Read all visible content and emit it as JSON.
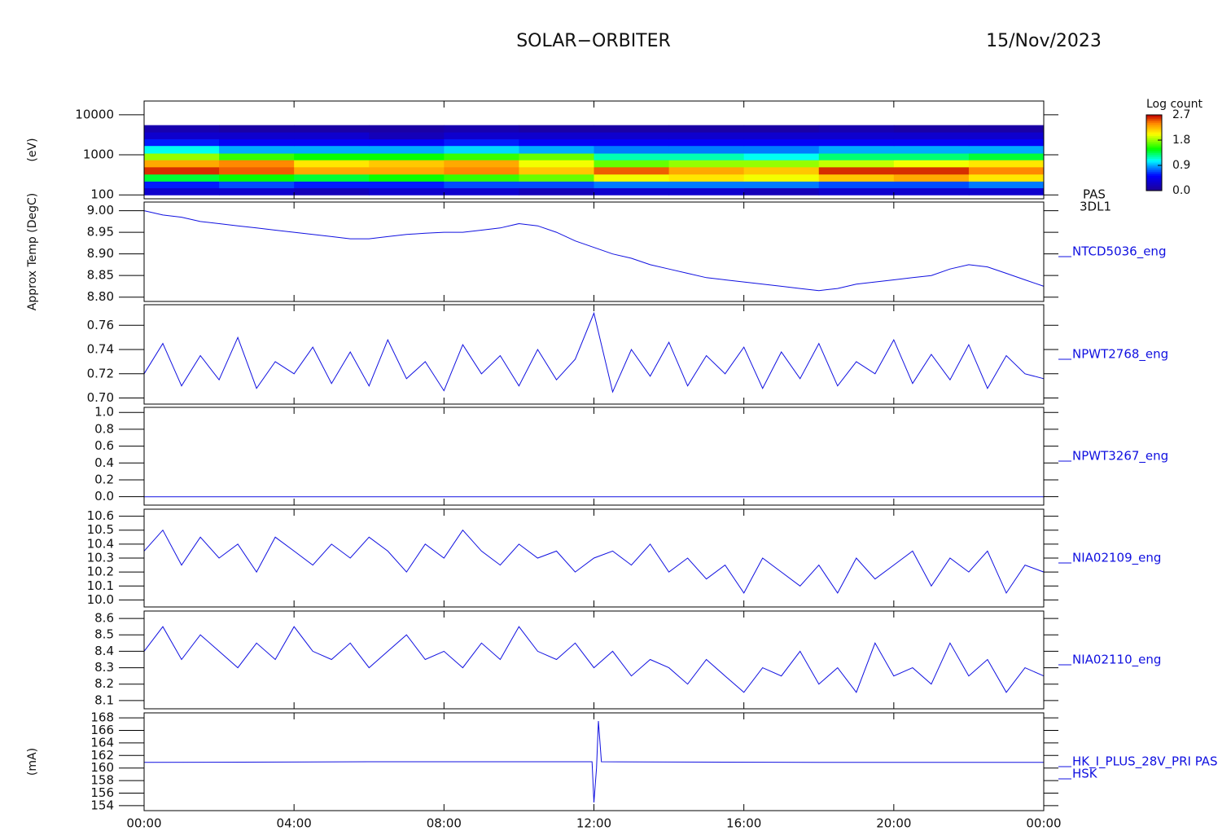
{
  "header": {
    "title": "SOLAR−ORBITER",
    "date": "15/Nov/2023"
  },
  "time_axis": {
    "xlim": [
      0,
      24
    ],
    "xticks": [
      {
        "value": 0,
        "label": "00:00"
      },
      {
        "value": 4,
        "label": "04:00"
      },
      {
        "value": 8,
        "label": "08:00"
      },
      {
        "value": 12,
        "label": "12:00"
      },
      {
        "value": 16,
        "label": "16:00"
      },
      {
        "value": 20,
        "label": "20:00"
      },
      {
        "value": 24,
        "label": "00:00"
      }
    ]
  },
  "chart_data": [
    {
      "type": "heatmap",
      "ylabel": "(eV)",
      "label": [
        "PAS",
        "3DL1"
      ],
      "ylog": true,
      "ylim": [
        80,
        22000
      ],
      "yticks": [
        100,
        1000,
        10000
      ],
      "x": [
        0,
        2,
        4,
        6,
        8,
        10,
        12,
        14,
        16,
        18,
        20,
        22,
        24
      ],
      "y": [
        100,
        150,
        220,
        330,
        500,
        750,
        1100,
        1700,
        2500,
        3700,
        5500
      ],
      "z": [
        [
          0.3,
          0.3,
          0.2,
          0.3,
          0.3,
          0.2,
          0.3,
          0.3,
          0.2,
          0.3,
          0.3,
          0.3
        ],
        [
          0.6,
          0.7,
          0.6,
          0.6,
          0.7,
          0.7,
          0.8,
          0.8,
          0.8,
          0.7,
          0.7,
          0.8
        ],
        [
          1.4,
          1.5,
          1.4,
          1.5,
          1.6,
          1.7,
          2.0,
          2.1,
          2.0,
          2.2,
          2.3,
          2.1
        ],
        [
          2.6,
          2.5,
          2.3,
          2.3,
          2.4,
          2.2,
          2.5,
          2.3,
          2.2,
          2.6,
          2.6,
          2.4
        ],
        [
          2.3,
          2.4,
          2.1,
          2.2,
          2.3,
          2.0,
          1.7,
          1.8,
          1.8,
          1.9,
          2.0,
          2.1
        ],
        [
          1.8,
          1.6,
          1.5,
          1.5,
          1.6,
          1.7,
          1.2,
          1.2,
          1.1,
          1.3,
          1.3,
          1.4
        ],
        [
          1.1,
          0.9,
          0.9,
          0.9,
          1.0,
          0.9,
          0.8,
          0.8,
          0.8,
          0.9,
          0.9,
          0.9
        ],
        [
          0.6,
          0.5,
          0.5,
          0.5,
          0.6,
          0.5,
          0.5,
          0.5,
          0.5,
          0.5,
          0.5,
          0.5
        ],
        [
          0.3,
          0.3,
          0.3,
          0.2,
          0.3,
          0.3,
          0.3,
          0.3,
          0.3,
          0.3,
          0.3,
          0.3
        ],
        [
          0.15,
          0.1,
          0.1,
          0.1,
          0.15,
          0.1,
          0.1,
          0.1,
          0.1,
          0.15,
          0.1,
          0.1
        ]
      ],
      "colormap": "rainbow",
      "colorbar_title": "Log count",
      "zlim": [
        0,
        2.7
      ],
      "zticks": [
        {
          "value": 0,
          "label": "0.0"
        },
        0.9,
        1.8,
        2.7
      ]
    },
    {
      "type": "line",
      "ylabel": "Approx Temp (DegC)",
      "label": "NTCD5036_eng",
      "color": "#1010e0",
      "ylim": [
        8.79,
        9.02
      ],
      "yticks": [
        {
          "value": 8.8,
          "label": "8.80"
        },
        8.85,
        {
          "value": 8.9,
          "label": "8.90"
        },
        8.95,
        {
          "value": 9,
          "label": "9.00"
        }
      ],
      "x": [
        0,
        0.5,
        1,
        1.5,
        2,
        2.5,
        3,
        3.5,
        4,
        4.5,
        5,
        5.5,
        6,
        6.5,
        7,
        7.5,
        8,
        8.5,
        9,
        9.5,
        10,
        10.5,
        11,
        11.5,
        12,
        12.5,
        13,
        13.5,
        14,
        14.5,
        15,
        15.5,
        16,
        16.5,
        17,
        17.5,
        18,
        18.5,
        19,
        19.5,
        20,
        20.5,
        21,
        21.5,
        22,
        22.5,
        23,
        23.5,
        24
      ],
      "values": [
        9.0,
        8.99,
        8.985,
        8.975,
        8.97,
        8.965,
        8.96,
        8.955,
        8.95,
        8.945,
        8.94,
        8.935,
        8.935,
        8.94,
        8.945,
        8.948,
        8.95,
        8.95,
        8.955,
        8.96,
        8.97,
        8.965,
        8.95,
        8.93,
        8.915,
        8.9,
        8.89,
        8.875,
        8.865,
        8.855,
        8.845,
        8.84,
        8.835,
        8.83,
        8.825,
        8.82,
        8.815,
        8.82,
        8.83,
        8.835,
        8.84,
        8.845,
        8.85,
        8.865,
        8.875,
        8.87,
        8.855,
        8.84,
        8.825
      ]
    },
    {
      "type": "line",
      "label": "NPWT2768_eng",
      "color": "#1010e0",
      "ylim": [
        0.695,
        0.777
      ],
      "yticks": [
        {
          "value": 0.7,
          "label": "0.70"
        },
        0.72,
        0.74,
        0.76
      ],
      "x": [
        0,
        0.5,
        1,
        1.5,
        2,
        2.5,
        3,
        3.5,
        4,
        4.5,
        5,
        5.5,
        6,
        6.5,
        7,
        7.5,
        8,
        8.5,
        9,
        9.5,
        10,
        10.5,
        11,
        11.5,
        12,
        12.5,
        13,
        13.5,
        14,
        14.5,
        15,
        15.5,
        16,
        16.5,
        17,
        17.5,
        18,
        18.5,
        19,
        19.5,
        20,
        20.5,
        21,
        21.5,
        22,
        22.5,
        23,
        23.5,
        24
      ],
      "values": [
        0.72,
        0.745,
        0.71,
        0.735,
        0.715,
        0.75,
        0.708,
        0.73,
        0.72,
        0.742,
        0.712,
        0.738,
        0.71,
        0.748,
        0.716,
        0.73,
        0.706,
        0.744,
        0.72,
        0.735,
        0.71,
        0.74,
        0.715,
        0.732,
        0.77,
        0.705,
        0.74,
        0.718,
        0.746,
        0.71,
        0.735,
        0.72,
        0.742,
        0.708,
        0.738,
        0.716,
        0.745,
        0.71,
        0.73,
        0.72,
        0.748,
        0.712,
        0.736,
        0.715,
        0.744,
        0.708,
        0.735,
        0.72,
        0.716
      ]
    },
    {
      "type": "line",
      "label": "NPWT3267_eng",
      "color": "#1010e0",
      "ylim": [
        -0.1,
        1.06
      ],
      "yticks": [
        {
          "value": 0,
          "label": "0.0"
        },
        0.2,
        0.4,
        0.6,
        0.8,
        {
          "value": 1,
          "label": "1.0"
        }
      ],
      "x": [
        0,
        24
      ],
      "values": [
        0,
        0
      ]
    },
    {
      "type": "line",
      "label": "NIA02109_eng",
      "color": "#1010e0",
      "ylim": [
        9.95,
        10.65
      ],
      "yticks": [
        {
          "value": 10,
          "label": "10.0"
        },
        10.1,
        10.2,
        10.3,
        10.4,
        10.5,
        10.6
      ],
      "x": [
        0,
        0.5,
        1,
        1.5,
        2,
        2.5,
        3,
        3.5,
        4,
        4.5,
        5,
        5.5,
        6,
        6.5,
        7,
        7.5,
        8,
        8.5,
        9,
        9.5,
        10,
        10.5,
        11,
        11.5,
        12,
        12.5,
        13,
        13.5,
        14,
        14.5,
        15,
        15.5,
        16,
        16.5,
        17,
        17.5,
        18,
        18.5,
        19,
        19.5,
        20,
        20.5,
        21,
        21.5,
        22,
        22.5,
        23,
        23.5,
        24
      ],
      "values": [
        10.35,
        10.5,
        10.25,
        10.45,
        10.3,
        10.4,
        10.2,
        10.45,
        10.35,
        10.25,
        10.4,
        10.3,
        10.45,
        10.35,
        10.2,
        10.4,
        10.3,
        10.5,
        10.35,
        10.25,
        10.4,
        10.3,
        10.35,
        10.2,
        10.3,
        10.35,
        10.25,
        10.4,
        10.2,
        10.3,
        10.15,
        10.25,
        10.05,
        10.3,
        10.2,
        10.1,
        10.25,
        10.05,
        10.3,
        10.15,
        10.25,
        10.35,
        10.1,
        10.3,
        10.2,
        10.35,
        10.05,
        10.25,
        10.2
      ]
    },
    {
      "type": "line",
      "label": "NIA02110_eng",
      "color": "#1010e0",
      "ylim": [
        8.05,
        8.645
      ],
      "yticks": [
        8.1,
        8.2,
        8.3,
        8.4,
        8.5,
        8.6
      ],
      "x": [
        0,
        0.5,
        1,
        1.5,
        2,
        2.5,
        3,
        3.5,
        4,
        4.5,
        5,
        5.5,
        6,
        6.5,
        7,
        7.5,
        8,
        8.5,
        9,
        9.5,
        10,
        10.5,
        11,
        11.5,
        12,
        12.5,
        13,
        13.5,
        14,
        14.5,
        15,
        15.5,
        16,
        16.5,
        17,
        17.5,
        18,
        18.5,
        19,
        19.5,
        20,
        20.5,
        21,
        21.5,
        22,
        22.5,
        23,
        23.5,
        24
      ],
      "values": [
        8.4,
        8.55,
        8.35,
        8.5,
        8.4,
        8.3,
        8.45,
        8.35,
        8.55,
        8.4,
        8.35,
        8.45,
        8.3,
        8.4,
        8.5,
        8.35,
        8.4,
        8.3,
        8.45,
        8.35,
        8.55,
        8.4,
        8.35,
        8.45,
        8.3,
        8.4,
        8.25,
        8.35,
        8.3,
        8.2,
        8.35,
        8.25,
        8.15,
        8.3,
        8.25,
        8.4,
        8.2,
        8.3,
        8.15,
        8.45,
        8.25,
        8.3,
        8.2,
        8.45,
        8.25,
        8.35,
        8.15,
        8.3,
        8.25
      ]
    },
    {
      "type": "line",
      "ylabel": "(mA)",
      "label": [
        "HK_I_PLUS_28V_PRI PAS",
        "HSK"
      ],
      "color": "#1010e0",
      "ylim": [
        153.2,
        168.8
      ],
      "yticks": [
        154,
        156,
        158,
        160,
        162,
        164,
        166,
        168
      ],
      "x": [
        0,
        6,
        11.95,
        12.0,
        12.07,
        12.12,
        12.2,
        18,
        24
      ],
      "values": [
        160.9,
        161,
        161,
        154.5,
        160,
        167.5,
        161,
        160.9,
        160.9
      ]
    }
  ]
}
